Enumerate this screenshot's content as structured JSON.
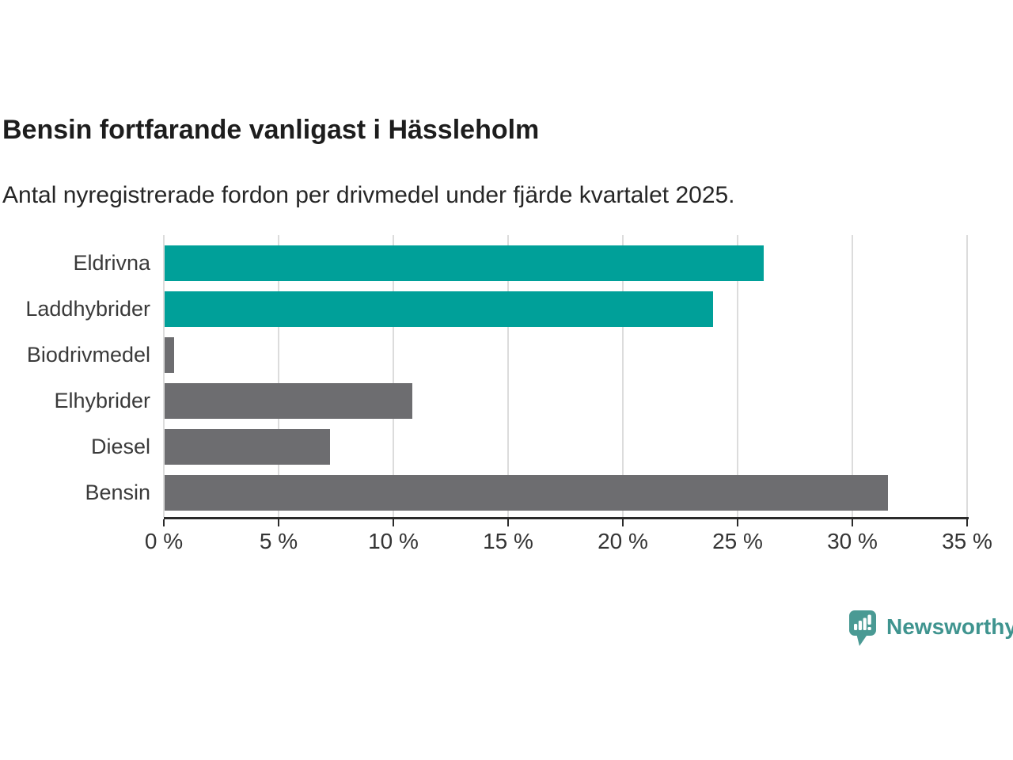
{
  "header": {
    "title": "Bensin fortfarande vanligast i Hässleholm",
    "subtitle": "Antal nyregistrerade fordon per drivmedel under fjärde kvartalet 2025."
  },
  "chart_data": {
    "type": "bar",
    "orientation": "horizontal",
    "title": "Bensin fortfarande vanligast i Hässleholm",
    "subtitle": "Antal nyregistrerade fordon per drivmedel under fjärde kvartalet 2025.",
    "categories": [
      "Eldrivna",
      "Laddhybrider",
      "Biodrivmedel",
      "Elhybrider",
      "Diesel",
      "Bensin"
    ],
    "values": [
      26.1,
      23.9,
      0.4,
      10.8,
      7.2,
      31.5
    ],
    "unit": "%",
    "bar_colors": [
      "#00a099",
      "#00a099",
      "#6d6d70",
      "#6d6d70",
      "#6d6d70",
      "#6d6d70"
    ],
    "xlabel": "",
    "ylabel": "",
    "xlim": [
      0,
      35
    ],
    "x_ticks": [
      0,
      5,
      10,
      15,
      20,
      25,
      30,
      35
    ],
    "x_tick_labels": [
      "0 %",
      "5 %",
      "10 %",
      "15 %",
      "20 %",
      "25 %",
      "30 %",
      "35 %"
    ],
    "grid": "vertical-gridlines-on",
    "legend": "none"
  },
  "colors": {
    "highlight_bar": "#00a099",
    "default_bar": "#6d6d70",
    "gridline": "#dcdcdc",
    "axis": "#2b2b2b",
    "title_text": "#1d1d1d",
    "logo_teal": "#45968f"
  },
  "footer": {
    "brand": "Newsworthy"
  }
}
